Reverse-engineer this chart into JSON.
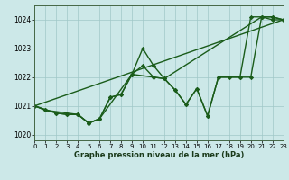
{
  "title": "Graphe pression niveau de la mer (hPa)",
  "background_color": "#cce8e8",
  "line_color": "#1a5c1a",
  "xlim": [
    0,
    23
  ],
  "ylim": [
    1019.8,
    1024.5
  ],
  "yticks": [
    1020,
    1021,
    1022,
    1023,
    1024
  ],
  "xticks": [
    0,
    1,
    2,
    3,
    4,
    5,
    6,
    7,
    8,
    9,
    10,
    11,
    12,
    13,
    14,
    15,
    16,
    17,
    18,
    19,
    20,
    21,
    22,
    23
  ],
  "line1_x": [
    0,
    1,
    2,
    3,
    4,
    5,
    6,
    7,
    8,
    9,
    10,
    11,
    12,
    13,
    14,
    15,
    16,
    17,
    18,
    19,
    20,
    21,
    22,
    23
  ],
  "line1_y": [
    1021.0,
    1020.85,
    1020.75,
    1020.7,
    1020.7,
    1020.4,
    1020.55,
    1021.3,
    1021.4,
    1022.1,
    1023.0,
    1022.4,
    1021.95,
    1021.55,
    1021.05,
    1021.6,
    1020.65,
    1022.0,
    1022.0,
    1022.0,
    1024.1,
    1024.1,
    1024.0,
    1024.0
  ],
  "line2_x": [
    0,
    2,
    3,
    4,
    5,
    6,
    9,
    12,
    21,
    22,
    23
  ],
  "line2_y": [
    1021.0,
    1020.75,
    1020.7,
    1020.7,
    1020.4,
    1020.55,
    1022.1,
    1021.95,
    1024.1,
    1024.1,
    1024.0
  ],
  "line3_x": [
    0,
    1,
    4,
    5,
    6,
    7,
    8,
    9,
    10,
    11,
    12,
    13,
    14,
    15,
    16,
    17,
    19,
    20,
    21,
    22,
    23
  ],
  "line3_y": [
    1021.0,
    1020.85,
    1020.7,
    1020.4,
    1020.55,
    1021.3,
    1021.4,
    1022.1,
    1022.4,
    1022.0,
    1021.95,
    1021.55,
    1021.05,
    1021.6,
    1020.65,
    1022.0,
    1022.0,
    1022.0,
    1024.1,
    1024.1,
    1024.0
  ],
  "line4_x": [
    0,
    23
  ],
  "line4_y": [
    1021.0,
    1024.0
  ]
}
